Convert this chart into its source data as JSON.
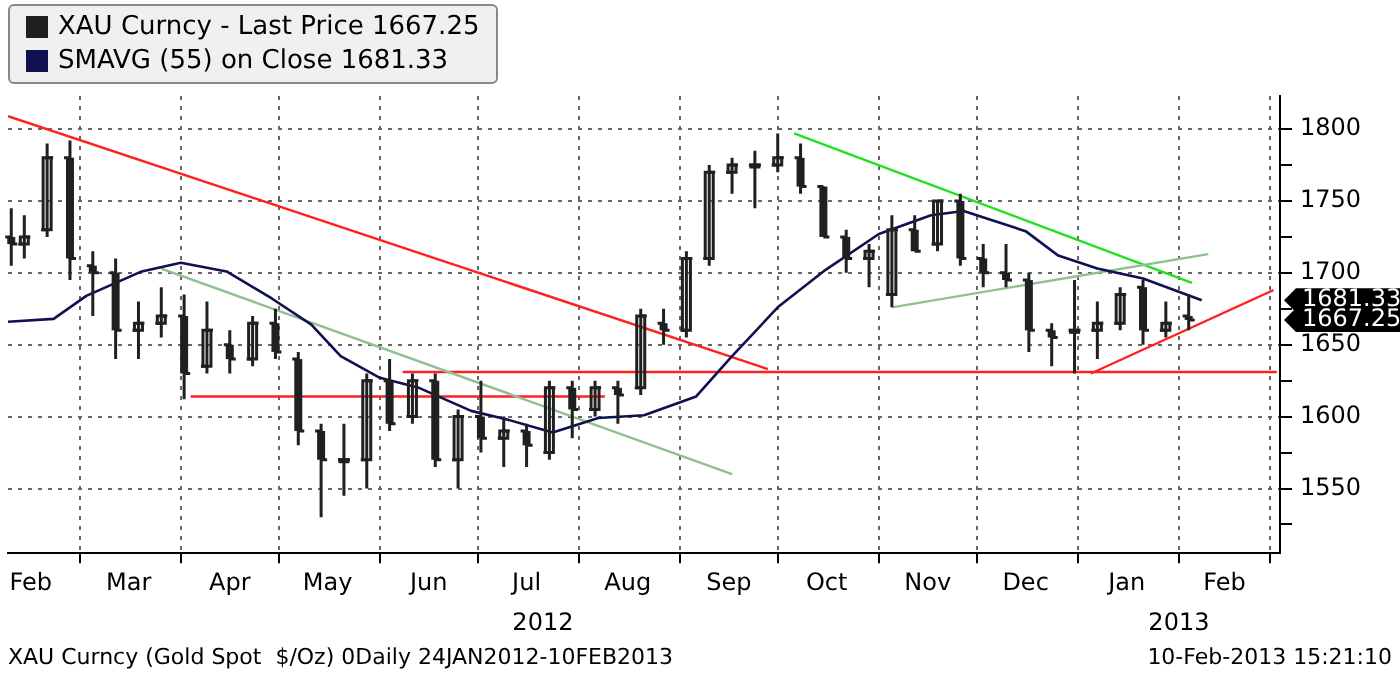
{
  "chart_data": {
    "type": "candlestick",
    "xlim": [
      "2012-02-08",
      "2013-03-04"
    ],
    "xticks": [
      {
        "value": "2012-02-15",
        "label": "Feb"
      },
      {
        "value": "2012-03-01",
        "label": null
      },
      {
        "value": "2012-03-16",
        "label": "Mar"
      },
      {
        "value": "2012-04-01",
        "label": null
      },
      {
        "value": "2012-04-16",
        "label": "Apr"
      },
      {
        "value": "2012-05-01",
        "label": null
      },
      {
        "value": "2012-05-16",
        "label": "May"
      },
      {
        "value": "2012-06-01",
        "label": null
      },
      {
        "value": "2012-06-16",
        "label": "Jun"
      },
      {
        "value": "2012-07-01",
        "label": null
      },
      {
        "value": "2012-07-16",
        "label": "Jul"
      },
      {
        "value": "2012-08-01",
        "label": null
      },
      {
        "value": "2012-08-16",
        "label": "Aug"
      },
      {
        "value": "2012-09-01",
        "label": null
      },
      {
        "value": "2012-09-16",
        "label": "Sep"
      },
      {
        "value": "2012-10-01",
        "label": null
      },
      {
        "value": "2012-10-16",
        "label": "Oct"
      },
      {
        "value": "2012-11-01",
        "label": null
      },
      {
        "value": "2012-11-16",
        "label": "Nov"
      },
      {
        "value": "2012-12-01",
        "label": null
      },
      {
        "value": "2012-12-16",
        "label": "Dec"
      },
      {
        "value": "2013-01-01",
        "label": null
      },
      {
        "value": "2013-01-16",
        "label": "Jan"
      },
      {
        "value": "2013-02-01",
        "label": null
      },
      {
        "value": "2013-02-15",
        "label": "Feb"
      },
      {
        "value": "2013-03-01",
        "label": null
      }
    ],
    "ylim": [
      1505,
      1823
    ],
    "yticks": [
      {
        "value": 1525,
        "label": null
      },
      1550,
      {
        "value": 1575,
        "label": null
      },
      1600,
      {
        "value": 1625,
        "label": null
      },
      1650,
      {
        "value": 1675,
        "label": null
      },
      1700,
      {
        "value": 1725,
        "label": null
      },
      1750,
      {
        "value": 1775,
        "label": null
      },
      1800
    ],
    "grid": true,
    "legend": "top left",
    "annotations": [
      "2012",
      "2013",
      "XAU Curncy (Gold Spot  $/Oz) 0Daily 24JAN2012-10FEB2013",
      "10-Feb-2013 15:21:10",
      "1681.33",
      "1667.25"
    ],
    "series": [
      {
        "name": "XAU Curncy - Last Price 1667.25",
        "color": "#202020",
        "x": [
          "2012-02-09",
          "2012-02-13",
          "2012-02-20",
          "2012-02-27",
          "2012-03-05",
          "2012-03-12",
          "2012-03-19",
          "2012-03-26",
          "2012-04-02",
          "2012-04-09",
          "2012-04-16",
          "2012-04-23",
          "2012-04-30",
          "2012-05-07",
          "2012-05-14",
          "2012-05-21",
          "2012-05-28",
          "2012-06-04",
          "2012-06-11",
          "2012-06-18",
          "2012-06-25",
          "2012-07-02",
          "2012-07-09",
          "2012-07-16",
          "2012-07-23",
          "2012-07-30",
          "2012-08-06",
          "2012-08-13",
          "2012-08-20",
          "2012-08-27",
          "2012-09-03",
          "2012-09-10",
          "2012-09-17",
          "2012-09-24",
          "2012-10-01",
          "2012-10-08",
          "2012-10-15",
          "2012-10-22",
          "2012-10-29",
          "2012-11-05",
          "2012-11-12",
          "2012-11-19",
          "2012-11-26",
          "2012-12-03",
          "2012-12-10",
          "2012-12-17",
          "2012-12-24",
          "2012-12-31",
          "2013-01-07",
          "2013-01-14",
          "2013-01-21",
          "2013-01-28",
          "2013-02-04"
        ],
        "ohlc": [
          [
            1725,
            1745,
            1705,
            1720
          ],
          [
            1720,
            1740,
            1710,
            1725
          ],
          [
            1730,
            1790,
            1725,
            1780
          ],
          [
            1780,
            1792,
            1695,
            1710
          ],
          [
            1705,
            1715,
            1670,
            1700
          ],
          [
            1700,
            1710,
            1640,
            1660
          ],
          [
            1660,
            1680,
            1640,
            1665
          ],
          [
            1665,
            1690,
            1655,
            1670
          ],
          [
            1670,
            1685,
            1612,
            1630
          ],
          [
            1635,
            1680,
            1630,
            1660
          ],
          [
            1650,
            1660,
            1630,
            1640
          ],
          [
            1640,
            1670,
            1635,
            1665
          ],
          [
            1665,
            1675,
            1640,
            1645
          ],
          [
            1640,
            1645,
            1580,
            1590
          ],
          [
            1590,
            1595,
            1530,
            1570
          ],
          [
            1570,
            1595,
            1545,
            1570
          ],
          [
            1570,
            1630,
            1550,
            1625
          ],
          [
            1625,
            1640,
            1590,
            1595
          ],
          [
            1600,
            1630,
            1595,
            1625
          ],
          [
            1625,
            1630,
            1565,
            1570
          ],
          [
            1570,
            1605,
            1550,
            1600
          ],
          [
            1600,
            1625,
            1575,
            1585
          ],
          [
            1585,
            1600,
            1565,
            1590
          ],
          [
            1590,
            1595,
            1565,
            1580
          ],
          [
            1575,
            1625,
            1570,
            1620
          ],
          [
            1620,
            1625,
            1585,
            1605
          ],
          [
            1605,
            1625,
            1600,
            1620
          ],
          [
            1620,
            1625,
            1595,
            1615
          ],
          [
            1620,
            1675,
            1615,
            1670
          ],
          [
            1665,
            1675,
            1650,
            1660
          ],
          [
            1660,
            1715,
            1655,
            1710
          ],
          [
            1710,
            1775,
            1705,
            1770
          ],
          [
            1770,
            1780,
            1755,
            1775
          ],
          [
            1775,
            1785,
            1745,
            1775
          ],
          [
            1775,
            1797,
            1770,
            1780
          ],
          [
            1780,
            1790,
            1755,
            1760
          ],
          [
            1760,
            1760,
            1725,
            1725
          ],
          [
            1725,
            1730,
            1700,
            1710
          ],
          [
            1710,
            1720,
            1690,
            1715
          ],
          [
            1685,
            1740,
            1676,
            1730
          ],
          [
            1730,
            1740,
            1715,
            1715
          ],
          [
            1720,
            1750,
            1715,
            1750
          ],
          [
            1750,
            1755,
            1705,
            1710
          ],
          [
            1710,
            1720,
            1690,
            1700
          ],
          [
            1700,
            1720,
            1690,
            1695
          ],
          [
            1695,
            1700,
            1645,
            1660
          ],
          [
            1660,
            1665,
            1635,
            1655
          ],
          [
            1660,
            1695,
            1630,
            1660
          ],
          [
            1660,
            1680,
            1640,
            1665
          ],
          [
            1665,
            1690,
            1660,
            1685
          ],
          [
            1690,
            1695,
            1650,
            1660
          ],
          [
            1660,
            1680,
            1655,
            1665
          ],
          [
            1670,
            1685,
            1660,
            1667.25
          ]
        ]
      },
      {
        "type": "line",
        "name": "SMAVG (55) on Close 1681.33",
        "color": "#101050",
        "x": [
          "2012-02-08",
          "2012-02-22",
          "2012-03-03",
          "2012-03-20",
          "2012-04-01",
          "2012-04-15",
          "2012-04-29",
          "2012-05-11",
          "2012-05-20",
          "2012-06-01",
          "2012-06-13",
          "2012-06-29",
          "2012-07-10",
          "2012-07-24",
          "2012-08-07",
          "2012-08-21",
          "2012-09-06",
          "2012-09-17",
          "2012-10-01",
          "2012-10-15",
          "2012-11-01",
          "2012-11-17",
          "2012-11-27",
          "2012-12-16",
          "2012-12-26",
          "2013-01-07",
          "2013-01-21",
          "2013-02-08"
        ],
        "values": [
          1666,
          1668,
          1684,
          1701,
          1707,
          1701,
          1682,
          1664,
          1642,
          1627,
          1620,
          1604,
          1598,
          1589,
          1599,
          1601,
          1614,
          1642,
          1676,
          1701,
          1727,
          1740,
          1743,
          1729,
          1712,
          1703,
          1696,
          1681
        ]
      },
      {
        "type": "line",
        "color": "#ff2020",
        "x": [
          "2012-02-08",
          "2012-09-28"
        ],
        "values": [
          1809,
          1633
        ]
      },
      {
        "type": "line",
        "color": "#90c090",
        "x": [
          "2012-03-26",
          "2012-09-17"
        ],
        "values": [
          1703,
          1560
        ]
      },
      {
        "type": "line",
        "color": "#90c090",
        "x": [
          "2012-11-05",
          "2013-02-10"
        ],
        "values": [
          1676,
          1713
        ]
      },
      {
        "type": "line",
        "color": "#20e020",
        "x": [
          "2012-10-06",
          "2013-02-05"
        ],
        "values": [
          1797,
          1693
        ]
      },
      {
        "type": "line",
        "color": "#ff2020",
        "x": [
          "2013-01-05",
          "2013-03-02"
        ],
        "values": [
          1630,
          1688
        ]
      },
      {
        "type": "line",
        "color": "#ff2020",
        "x": [
          "2012-04-04",
          "2012-08-09"
        ],
        "values": [
          1614,
          1614
        ]
      },
      {
        "type": "line",
        "color": "#ff2020",
        "x": [
          "2012-06-08",
          "2013-03-03"
        ],
        "values": [
          1631,
          1631
        ]
      }
    ]
  }
}
